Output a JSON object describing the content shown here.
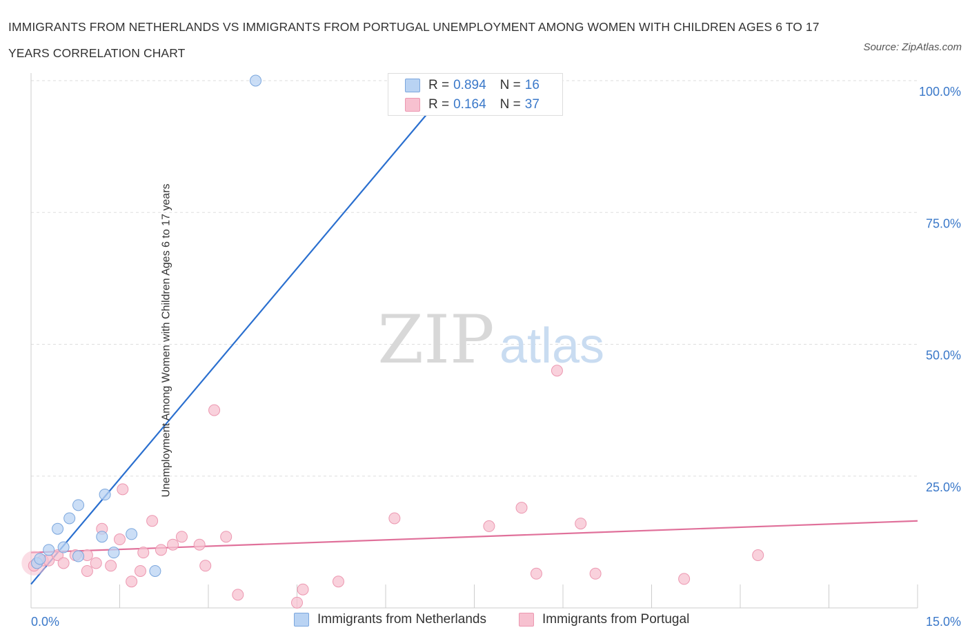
{
  "title": "IMMIGRANTS FROM NETHERLANDS VS IMMIGRANTS FROM PORTUGAL UNEMPLOYMENT AMONG WOMEN WITH CHILDREN AGES 6 TO 17 YEARS CORRELATION CHART",
  "source": "Source: ZipAtlas.com",
  "watermark": {
    "zip": "ZIP",
    "atlas": "atlas"
  },
  "legend": {
    "rows": [
      {
        "r_label": "R =",
        "r_value": "0.894",
        "n_label": "N =",
        "n_value": "16"
      },
      {
        "r_label": "R =",
        "r_value": "0.164",
        "n_label": "N =",
        "n_value": "37"
      }
    ]
  },
  "colors": {
    "netherlands_fill": "#b9d3f3",
    "netherlands_stroke": "#7aa6dd",
    "netherlands_line": "#2a6fcf",
    "portugal_fill": "#f7c1d0",
    "portugal_stroke": "#ec97b0",
    "portugal_line": "#e0709a",
    "tick_label": "#3a78c9",
    "grid": "#dddddd"
  },
  "chart_data": {
    "type": "scatter",
    "title": "IMMIGRANTS FROM NETHERLANDS VS IMMIGRANTS FROM PORTUGAL UNEMPLOYMENT AMONG WOMEN WITH CHILDREN AGES 6 TO 17 YEARS CORRELATION CHART",
    "xlabel": "",
    "ylabel": "Unemployment Among Women with Children Ages 6 to 17 years",
    "xlim": [
      0,
      15
    ],
    "ylim": [
      0,
      100
    ],
    "x_tick_labels": [
      "0.0%",
      "15.0%"
    ],
    "y_tick_labels": [
      "100.0%",
      "75.0%",
      "50.0%",
      "25.0%"
    ],
    "y_tick_values": [
      100,
      75,
      50,
      25
    ],
    "grid": true,
    "legend_position": "top-center",
    "series": [
      {
        "name": "Immigrants from Netherlands",
        "points": [
          [
            0.1,
            8.5
          ],
          [
            0.15,
            9.3
          ],
          [
            0.3,
            11.0
          ],
          [
            0.45,
            15.0
          ],
          [
            0.55,
            11.5
          ],
          [
            0.65,
            17.0
          ],
          [
            0.8,
            9.8
          ],
          [
            0.8,
            19.5
          ],
          [
            1.2,
            13.5
          ],
          [
            1.25,
            21.5
          ],
          [
            1.4,
            10.5
          ],
          [
            1.7,
            14.0
          ],
          [
            2.1,
            7.0
          ],
          [
            3.8,
            100.0
          ],
          [
            6.2,
            100.0
          ],
          [
            8.75,
            100.0
          ]
        ],
        "trend": {
          "x0": 0.0,
          "y0": 4.5,
          "x1": 7.1,
          "y1": 99.0
        }
      },
      {
        "name": "Immigrants from Portugal",
        "points": [
          [
            0.05,
            8.0
          ],
          [
            0.2,
            9.0
          ],
          [
            0.3,
            9.0
          ],
          [
            0.45,
            10.0
          ],
          [
            0.55,
            8.5
          ],
          [
            0.75,
            10.0
          ],
          [
            0.95,
            10.0
          ],
          [
            0.95,
            7.0
          ],
          [
            1.1,
            8.5
          ],
          [
            1.2,
            15.0
          ],
          [
            1.35,
            8.0
          ],
          [
            1.5,
            13.0
          ],
          [
            1.55,
            22.5
          ],
          [
            1.7,
            5.0
          ],
          [
            1.85,
            7.0
          ],
          [
            1.9,
            10.5
          ],
          [
            2.05,
            16.5
          ],
          [
            2.2,
            11.0
          ],
          [
            2.4,
            12.0
          ],
          [
            2.55,
            13.5
          ],
          [
            2.85,
            12.0
          ],
          [
            2.95,
            8.0
          ],
          [
            3.1,
            37.5
          ],
          [
            3.3,
            13.5
          ],
          [
            3.5,
            2.5
          ],
          [
            4.5,
            1.0
          ],
          [
            4.6,
            3.5
          ],
          [
            5.2,
            5.0
          ],
          [
            6.15,
            17.0
          ],
          [
            7.75,
            15.5
          ],
          [
            8.3,
            19.0
          ],
          [
            8.55,
            6.5
          ],
          [
            8.9,
            45.0
          ],
          [
            9.3,
            16.0
          ],
          [
            9.55,
            6.5
          ],
          [
            11.05,
            5.5
          ],
          [
            12.3,
            10.0
          ]
        ],
        "trend": {
          "x0": 0.0,
          "y0": 10.5,
          "x1": 15.0,
          "y1": 16.5
        }
      }
    ]
  }
}
